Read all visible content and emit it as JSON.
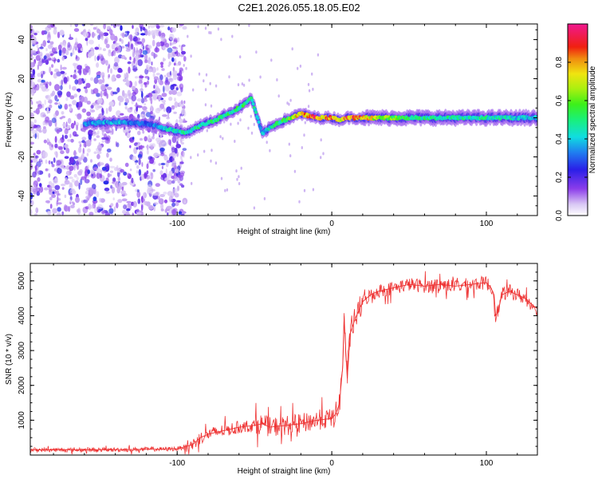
{
  "title": "C2E1.2026.055.18.05.E02",
  "chart_data": [
    {
      "type": "heatmap",
      "title": "C2E1.2026.055.18.05.E02",
      "xlabel": "Height of straight line (km)",
      "ylabel": "Frequency (Hz)",
      "xlim": [
        -195,
        133
      ],
      "ylim": [
        -50,
        48
      ],
      "x_ticks": [
        -100,
        0,
        100
      ],
      "y_ticks": [
        -40,
        -20,
        0,
        20,
        40
      ],
      "colorbar": {
        "label": "Normalized spectral amplitude",
        "range": [
          0.0,
          1.0
        ],
        "ticks": [
          0.0,
          0.2,
          0.4,
          0.6,
          0.8
        ],
        "tick_labels": [
          "0.0",
          "0.2",
          "0.4",
          "0.6",
          "0.8"
        ]
      },
      "ridge_path": {
        "x": [
          -160,
          -140,
          -120,
          -105,
          -95,
          -85,
          -75,
          -65,
          -58,
          -52,
          -45,
          -38,
          -30,
          -20,
          -10,
          0,
          5,
          10,
          20,
          40,
          60,
          80,
          100,
          120,
          130
        ],
        "frequency": [
          -3,
          -2,
          -3,
          -6,
          -8,
          -4,
          -1,
          3,
          6,
          10,
          -8,
          -4,
          -1,
          2,
          0,
          0,
          -1,
          0,
          0,
          0,
          0,
          0,
          0,
          0,
          0
        ],
        "amplitude": [
          0.35,
          0.4,
          0.3,
          0.45,
          0.5,
          0.5,
          0.55,
          0.5,
          0.55,
          0.5,
          0.4,
          0.5,
          0.55,
          0.85,
          0.9,
          0.85,
          0.7,
          0.9,
          0.85,
          0.6,
          0.5,
          0.5,
          0.5,
          0.45,
          0.4
        ]
      },
      "noise_region_x": [
        -195,
        -95
      ]
    },
    {
      "type": "line",
      "xlabel": "Height of straight line (km)",
      "ylabel": "SNR (10 * v/v)",
      "xlim": [
        -195,
        133
      ],
      "ylim": [
        0,
        5500
      ],
      "x_ticks": [
        -100,
        0,
        100
      ],
      "y_ticks": [
        1000,
        2000,
        3000,
        4000,
        5000
      ],
      "series": [
        {
          "name": "SNR",
          "color": "#ee3333",
          "x": [
            -195,
            -150,
            -110,
            -100,
            -90,
            -85,
            -80,
            -70,
            -60,
            -50,
            -45,
            -40,
            -30,
            -20,
            -10,
            0,
            3,
            5,
            7,
            8,
            9,
            10,
            12,
            15,
            20,
            25,
            30,
            40,
            50,
            60,
            70,
            80,
            90,
            100,
            103,
            105,
            106,
            108,
            110,
            115,
            120,
            125,
            130,
            133
          ],
          "y": [
            150,
            150,
            170,
            180,
            300,
            500,
            600,
            700,
            800,
            850,
            900,
            800,
            850,
            900,
            1000,
            1050,
            1200,
            1500,
            2500,
            4000,
            3000,
            2200,
            3500,
            3900,
            4400,
            4600,
            4700,
            4800,
            4900,
            4850,
            4900,
            4850,
            4900,
            4950,
            4800,
            4600,
            4000,
            4200,
            4600,
            4700,
            4600,
            4500,
            4300,
            4200
          ]
        }
      ]
    }
  ]
}
